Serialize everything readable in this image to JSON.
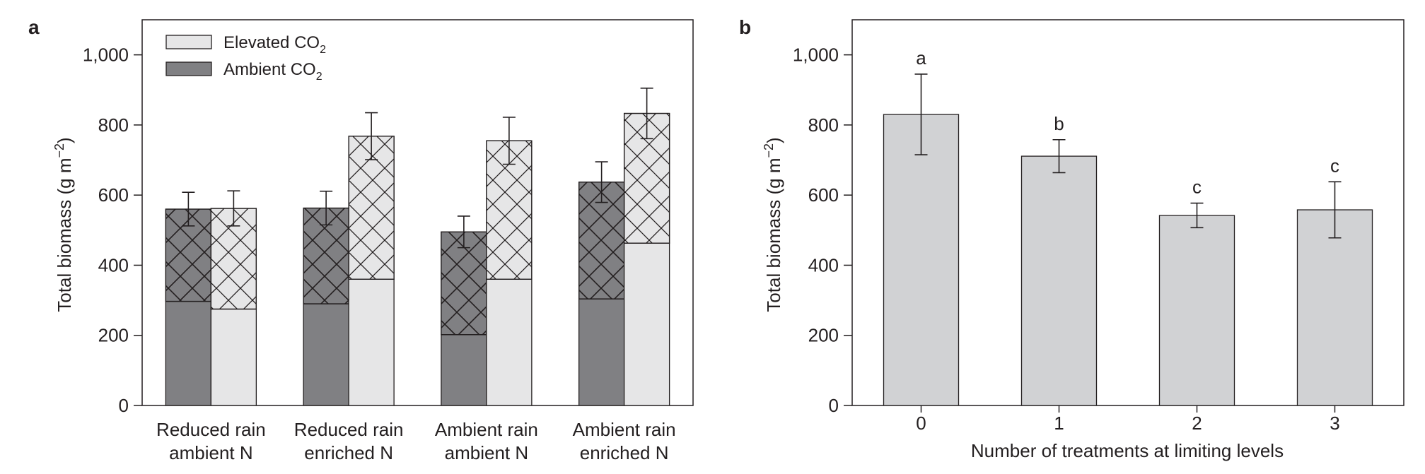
{
  "chart_data": [
    {
      "panel_letter": "a",
      "type": "bar",
      "stacked": true,
      "ylabel": "Total biomass (g m−2)",
      "ylim": [
        0,
        1100
      ],
      "yticks": [
        0,
        200,
        400,
        600,
        800,
        1000
      ],
      "ytick_labels": [
        "0",
        "200",
        "400",
        "600",
        "800",
        "1,000"
      ],
      "grid": false,
      "legend_placement": "top-left",
      "categories": [
        [
          "Reduced rain",
          "ambient N"
        ],
        [
          "Reduced rain",
          "enriched N"
        ],
        [
          "Ambient rain",
          "ambient N"
        ],
        [
          "Ambient rain",
          "enriched N"
        ]
      ],
      "series": [
        {
          "name": "Ambient CO2",
          "legend_main": "Ambient CO",
          "legend_sub": "2",
          "fill": "#808083",
          "lower_segment": [
            297,
            290,
            202,
            304
          ],
          "totals": [
            560,
            563,
            495,
            637
          ],
          "error": [
            48,
            48,
            45,
            58
          ]
        },
        {
          "name": "Elevated CO2",
          "legend_main": "Elevated CO",
          "legend_sub": "2",
          "fill": "#e6e6e7",
          "lower_segment": [
            275,
            360,
            360,
            463
          ],
          "totals": [
            562,
            768,
            755,
            833
          ],
          "error": [
            50,
            67,
            67,
            72
          ]
        }
      ],
      "colors": {
        "ambient": "#808083",
        "elevated": "#e6e6e7",
        "ink": "#231f20"
      }
    },
    {
      "panel_letter": "b",
      "type": "bar",
      "ylabel": "Total biomass (g m−2)",
      "xlabel": "Number of treatments at limiting levels",
      "ylim": [
        0,
        1100
      ],
      "yticks": [
        0,
        200,
        400,
        600,
        800,
        1000
      ],
      "ytick_labels": [
        "0",
        "200",
        "400",
        "600",
        "800",
        "1,000"
      ],
      "grid": false,
      "categories": [
        "0",
        "1",
        "2",
        "3"
      ],
      "values": [
        830,
        711,
        542,
        558
      ],
      "error": [
        115,
        47,
        35,
        80
      ],
      "annotations": [
        "a",
        "b",
        "c",
        "c"
      ],
      "colors": {
        "bar": "#d1d2d4",
        "ink": "#231f20"
      }
    }
  ]
}
